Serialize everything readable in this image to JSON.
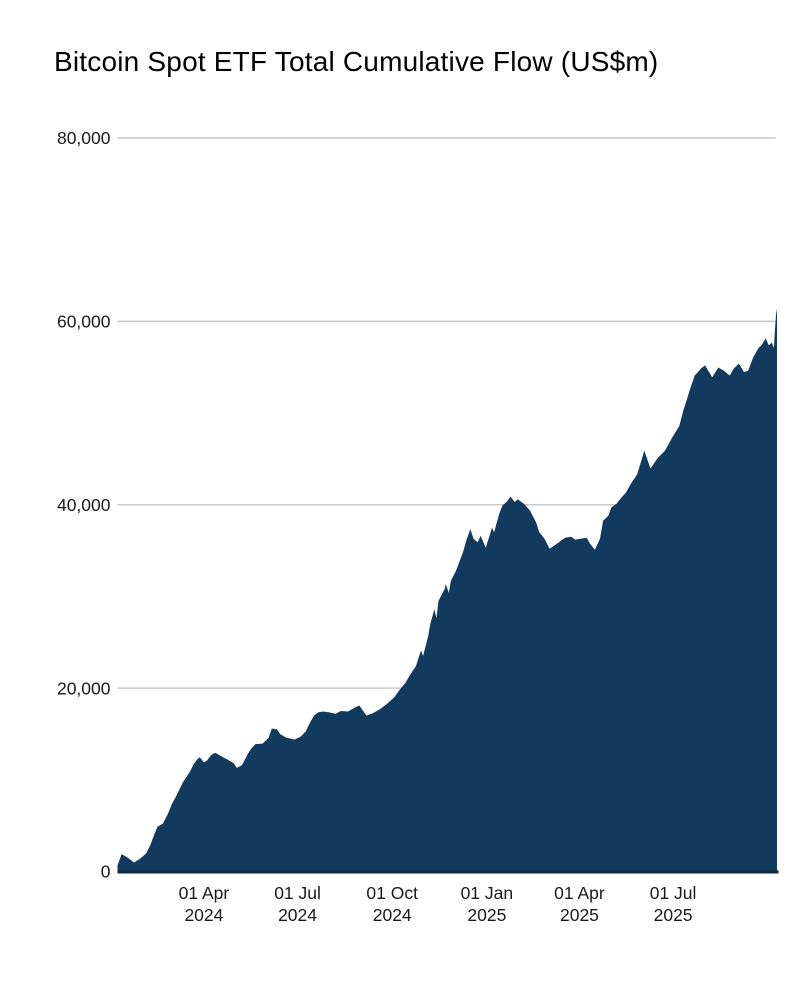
{
  "header": {
    "title": "Bitcoin Spot ETF Total Cumulative Flow (US$m)"
  },
  "chart_data": {
    "type": "area",
    "title": "Bitcoin Spot ETF Total Cumulative Flow (US$m)",
    "xlabel": "",
    "ylabel": "",
    "grid": true,
    "legend": false,
    "ylim": [
      0,
      80000
    ],
    "x_range": [
      "2024-01-08",
      "2025-10-10"
    ],
    "y_ticks": [
      {
        "value": 0,
        "label": "0"
      },
      {
        "value": 20000,
        "label": "20,000"
      },
      {
        "value": 40000,
        "label": "40,000"
      },
      {
        "value": 60000,
        "label": "60,000"
      },
      {
        "value": 80000,
        "label": "80,000"
      }
    ],
    "x_ticks": [
      {
        "date": "2024-04-01",
        "line1": "01 Apr",
        "line2": "2024"
      },
      {
        "date": "2024-07-01",
        "line1": "01 Jul",
        "line2": "2024"
      },
      {
        "date": "2024-10-01",
        "line1": "01 Oct",
        "line2": "2024"
      },
      {
        "date": "2025-01-01",
        "line1": "01 Jan",
        "line2": "2025"
      },
      {
        "date": "2025-04-01",
        "line1": "01 Apr",
        "line2": "2025"
      },
      {
        "date": "2025-07-01",
        "line1": "01 Jul",
        "line2": "2025"
      }
    ],
    "colors": {
      "area_fill": "#123a5f",
      "gridline": "#c9c9c9",
      "axis_line": "#0f2b45",
      "label_text": "#1a1a1a",
      "title_text": "#000000"
    },
    "series": [
      {
        "name": "Total cumulative flow (US$m)",
        "points": [
          [
            "2024-01-08",
            650
          ],
          [
            "2024-01-12",
            1900
          ],
          [
            "2024-01-18",
            1500
          ],
          [
            "2024-01-24",
            980
          ],
          [
            "2024-01-30",
            1400
          ],
          [
            "2024-02-05",
            2000
          ],
          [
            "2024-02-09",
            2900
          ],
          [
            "2024-02-13",
            4100
          ],
          [
            "2024-02-16",
            4900
          ],
          [
            "2024-02-21",
            5200
          ],
          [
            "2024-02-26",
            6300
          ],
          [
            "2024-03-01",
            7400
          ],
          [
            "2024-03-05",
            8200
          ],
          [
            "2024-03-08",
            8900
          ],
          [
            "2024-03-12",
            9800
          ],
          [
            "2024-03-15",
            10300
          ],
          [
            "2024-03-19",
            11000
          ],
          [
            "2024-03-22",
            11700
          ],
          [
            "2024-03-26",
            12300
          ],
          [
            "2024-03-28",
            12460
          ],
          [
            "2024-04-01",
            11900
          ],
          [
            "2024-04-04",
            12100
          ],
          [
            "2024-04-08",
            12700
          ],
          [
            "2024-04-12",
            12950
          ],
          [
            "2024-04-16",
            12700
          ],
          [
            "2024-04-19",
            12500
          ],
          [
            "2024-04-24",
            12200
          ],
          [
            "2024-04-30",
            11800
          ],
          [
            "2024-05-03",
            11300
          ],
          [
            "2024-05-08",
            11600
          ],
          [
            "2024-05-14",
            12900
          ],
          [
            "2024-05-17",
            13400
          ],
          [
            "2024-05-21",
            13900
          ],
          [
            "2024-05-28",
            13950
          ],
          [
            "2024-06-03",
            14600
          ],
          [
            "2024-06-06",
            15600
          ],
          [
            "2024-06-11",
            15500
          ],
          [
            "2024-06-14",
            15000
          ],
          [
            "2024-06-20",
            14600
          ],
          [
            "2024-06-28",
            14400
          ],
          [
            "2024-07-04",
            14700
          ],
          [
            "2024-07-09",
            15300
          ],
          [
            "2024-07-12",
            16000
          ],
          [
            "2024-07-17",
            17000
          ],
          [
            "2024-07-21",
            17350
          ],
          [
            "2024-07-26",
            17450
          ],
          [
            "2024-08-01",
            17350
          ],
          [
            "2024-08-07",
            17200
          ],
          [
            "2024-08-12",
            17500
          ],
          [
            "2024-08-19",
            17450
          ],
          [
            "2024-08-26",
            17900
          ],
          [
            "2024-08-30",
            18100
          ],
          [
            "2024-09-06",
            17000
          ],
          [
            "2024-09-12",
            17250
          ],
          [
            "2024-09-19",
            17700
          ],
          [
            "2024-09-26",
            18300
          ],
          [
            "2024-10-03",
            19000
          ],
          [
            "2024-10-08",
            19800
          ],
          [
            "2024-10-14",
            20600
          ],
          [
            "2024-10-17",
            21200
          ],
          [
            "2024-10-21",
            21900
          ],
          [
            "2024-10-24",
            22400
          ],
          [
            "2024-10-29",
            24100
          ],
          [
            "2024-10-31",
            23500
          ],
          [
            "2024-11-05",
            25700
          ],
          [
            "2024-11-07",
            27000
          ],
          [
            "2024-11-11",
            28600
          ],
          [
            "2024-11-13",
            27650
          ],
          [
            "2024-11-15",
            29500
          ],
          [
            "2024-11-19",
            30400
          ],
          [
            "2024-11-21",
            30800
          ],
          [
            "2024-11-22",
            31350
          ],
          [
            "2024-11-25",
            30400
          ],
          [
            "2024-11-27",
            31700
          ],
          [
            "2024-12-02",
            32800
          ],
          [
            "2024-12-05",
            33700
          ],
          [
            "2024-12-09",
            34900
          ],
          [
            "2024-12-12",
            36100
          ],
          [
            "2024-12-16",
            37350
          ],
          [
            "2024-12-19",
            36300
          ],
          [
            "2024-12-23",
            35900
          ],
          [
            "2024-12-26",
            36600
          ],
          [
            "2024-12-31",
            35300
          ],
          [
            "2025-01-03",
            36400
          ],
          [
            "2025-01-06",
            37500
          ],
          [
            "2025-01-08",
            37000
          ],
          [
            "2025-01-13",
            39000
          ],
          [
            "2025-01-16",
            39900
          ],
          [
            "2025-01-21",
            40400
          ],
          [
            "2025-01-24",
            40900
          ],
          [
            "2025-01-28",
            40300
          ],
          [
            "2025-01-31",
            40600
          ],
          [
            "2025-02-06",
            40100
          ],
          [
            "2025-02-12",
            39350
          ],
          [
            "2025-02-18",
            38050
          ],
          [
            "2025-02-21",
            37000
          ],
          [
            "2025-02-26",
            36300
          ],
          [
            "2025-03-03",
            35200
          ],
          [
            "2025-03-07",
            35500
          ],
          [
            "2025-03-12",
            35900
          ],
          [
            "2025-03-18",
            36400
          ],
          [
            "2025-03-24",
            36500
          ],
          [
            "2025-03-28",
            36200
          ],
          [
            "2025-04-02",
            36300
          ],
          [
            "2025-04-08",
            36400
          ],
          [
            "2025-04-11",
            35800
          ],
          [
            "2025-04-16",
            35100
          ],
          [
            "2025-04-21",
            36300
          ],
          [
            "2025-04-24",
            38250
          ],
          [
            "2025-04-29",
            38800
          ],
          [
            "2025-05-02",
            39700
          ],
          [
            "2025-05-07",
            40100
          ],
          [
            "2025-05-12",
            40800
          ],
          [
            "2025-05-16",
            41300
          ],
          [
            "2025-05-21",
            42300
          ],
          [
            "2025-05-27",
            43300
          ],
          [
            "2025-05-30",
            44400
          ],
          [
            "2025-06-03",
            45900
          ],
          [
            "2025-06-09",
            43950
          ],
          [
            "2025-06-16",
            45100
          ],
          [
            "2025-06-23",
            45900
          ],
          [
            "2025-06-30",
            47300
          ],
          [
            "2025-07-07",
            48600
          ],
          [
            "2025-07-11",
            50300
          ],
          [
            "2025-07-15",
            51700
          ],
          [
            "2025-07-18",
            52800
          ],
          [
            "2025-07-22",
            54100
          ],
          [
            "2025-07-25",
            54450
          ],
          [
            "2025-07-28",
            54860
          ],
          [
            "2025-08-01",
            55200
          ],
          [
            "2025-08-08",
            53900
          ],
          [
            "2025-08-14",
            54970
          ],
          [
            "2025-08-19",
            54640
          ],
          [
            "2025-08-25",
            54100
          ],
          [
            "2025-08-29",
            54860
          ],
          [
            "2025-09-03",
            55400
          ],
          [
            "2025-09-08",
            54450
          ],
          [
            "2025-09-12",
            54640
          ],
          [
            "2025-09-17",
            56100
          ],
          [
            "2025-09-22",
            57100
          ],
          [
            "2025-09-25",
            57400
          ],
          [
            "2025-09-29",
            58150
          ],
          [
            "2025-10-02",
            57380
          ],
          [
            "2025-10-05",
            57700
          ],
          [
            "2025-10-07",
            57100
          ],
          [
            "2025-10-08",
            59000
          ],
          [
            "2025-10-09",
            60700
          ],
          [
            "2025-10-10",
            61400
          ]
        ]
      }
    ]
  }
}
